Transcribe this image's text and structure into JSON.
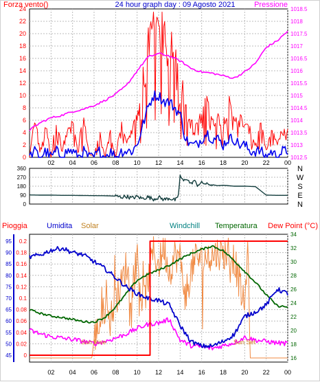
{
  "title": "24 hour graph day : 09 Agosto 2021",
  "chart_data": [
    {
      "id": "wind",
      "type": "line",
      "legend_left": "Forza vento()",
      "legend_right": "Pressione",
      "x_ticks": [
        "02",
        "04",
        "06",
        "08",
        "10",
        "12",
        "14",
        "16",
        "18",
        "20",
        "22",
        "00"
      ],
      "y_left_ticks": [
        "0",
        "2",
        "4",
        "6",
        "8",
        "10",
        "12",
        "14",
        "16",
        "18",
        "20",
        "22",
        "24"
      ],
      "y_left_range": [
        0,
        24
      ],
      "y_right_ticks": [
        "1012.5",
        "1013",
        "1013.5",
        "1014",
        "1014.5",
        "1015",
        "1015.5",
        "1016",
        "1016.5",
        "1017",
        "1017.5",
        "1018",
        "1018.5"
      ],
      "y_right_range": [
        1012.5,
        1018.5
      ],
      "colors": {
        "gust": "#ff0000",
        "speed": "#0000ee",
        "pressure": "#ff00ff"
      },
      "series": [
        {
          "name": "gust",
          "x": [
            0.0,
            0.5,
            1.0,
            1.5,
            2.0,
            2.5,
            3.0,
            3.5,
            4.0,
            4.5,
            5.0,
            5.5,
            6.0,
            6.5,
            7.0,
            7.5,
            8.0,
            8.5,
            9.0,
            9.5,
            10.0,
            10.5,
            11.0,
            11.5,
            12.0,
            12.5,
            13.0,
            13.5,
            14.0,
            14.5,
            15.0,
            15.5,
            16.0,
            16.5,
            17.0,
            17.5,
            18.0,
            18.5,
            19.0,
            19.5,
            20.0,
            20.5,
            21.0,
            21.5,
            22.0,
            22.5,
            23.0,
            23.5,
            24.0
          ],
          "values": [
            0,
            6,
            1,
            5,
            0,
            6,
            1,
            4,
            5,
            1,
            6,
            1,
            0,
            4,
            0,
            4,
            0,
            5,
            2,
            4,
            6,
            9,
            16,
            19,
            20,
            18,
            17,
            16,
            13,
            7,
            5,
            5,
            6,
            10,
            5,
            6,
            5,
            8,
            6,
            6,
            5,
            4,
            2,
            5,
            1,
            4,
            2,
            4,
            5
          ]
        },
        {
          "name": "speed",
          "x": [
            0.0,
            0.5,
            1.0,
            1.5,
            2.0,
            2.5,
            3.0,
            3.5,
            4.0,
            4.5,
            5.0,
            5.5,
            6.0,
            6.5,
            7.0,
            7.5,
            8.0,
            8.5,
            9.0,
            9.5,
            10.0,
            10.5,
            11.0,
            11.5,
            12.0,
            12.5,
            13.0,
            13.5,
            14.0,
            14.5,
            15.0,
            15.5,
            16.0,
            16.5,
            17.0,
            17.5,
            18.0,
            18.5,
            19.0,
            19.5,
            20.0,
            20.5,
            21.0,
            21.5,
            22.0,
            22.5,
            23.0,
            23.5,
            24.0
          ],
          "values": [
            0,
            1,
            0,
            1,
            0,
            1,
            0,
            1,
            1,
            0,
            1,
            0,
            0,
            1,
            0,
            1,
            0,
            1,
            1,
            1,
            2,
            5,
            8,
            10,
            10,
            9,
            9,
            8,
            7,
            3,
            2,
            2,
            3,
            4,
            3,
            3,
            2,
            3,
            3,
            2,
            2,
            1,
            1,
            1,
            0,
            1,
            0,
            1,
            1
          ]
        },
        {
          "name": "pressure",
          "x": [
            0,
            1,
            2,
            3,
            4,
            5,
            6,
            7,
            8,
            9,
            10,
            11,
            12,
            13,
            14,
            15,
            16,
            17,
            18,
            19,
            20,
            21,
            22,
            23,
            24
          ],
          "values": [
            1013.6,
            1013.9,
            1014.1,
            1014.2,
            1014.35,
            1014.45,
            1014.6,
            1014.8,
            1015.05,
            1015.4,
            1016.0,
            1016.55,
            1016.7,
            1016.6,
            1016.4,
            1016.1,
            1015.95,
            1015.9,
            1015.8,
            1015.7,
            1015.95,
            1016.3,
            1016.95,
            1017.2,
            1017.6
          ]
        }
      ]
    },
    {
      "id": "wind_direction",
      "type": "line",
      "x_ticks": [
        "02",
        "04",
        "06",
        "08",
        "10",
        "12",
        "14",
        "16",
        "18",
        "20",
        "22",
        "00"
      ],
      "y_left_ticks": [
        "0",
        "90",
        "180",
        "270",
        "360"
      ],
      "y_left_range": [
        0,
        360
      ],
      "y_right_ticks": [
        "N",
        "W",
        "S",
        "E",
        "N"
      ],
      "colors": {
        "direction": "#123c3c"
      },
      "series": [
        {
          "name": "direction",
          "x": [
            0.0,
            1.0,
            2.0,
            3.0,
            4.0,
            5.0,
            6.0,
            7.0,
            8.0,
            8.5,
            9.0,
            9.5,
            10.0,
            10.5,
            11.0,
            11.5,
            12.0,
            12.5,
            13.0,
            13.5,
            13.8,
            14.0,
            14.3,
            14.6,
            15.0,
            15.3,
            15.6,
            16.0,
            16.5,
            17.0,
            17.5,
            18.0,
            19.0,
            20.0,
            21.0,
            22.0,
            23.0,
            24.0
          ],
          "values": [
            92,
            90,
            90,
            88,
            88,
            86,
            85,
            84,
            80,
            70,
            78,
            60,
            75,
            55,
            72,
            50,
            68,
            45,
            60,
            40,
            55,
            285,
            230,
            260,
            200,
            240,
            190,
            215,
            200,
            195,
            185,
            190,
            180,
            180,
            176,
            90,
            88,
            88
          ]
        }
      ]
    },
    {
      "id": "weather",
      "type": "line",
      "legend_labels": [
        "Pioggia",
        "Umidita",
        "Solar",
        "Windchill",
        "Temperatura",
        "Dew Point (°C)"
      ],
      "annotations": [
        "Sun Rise",
        "Sun Set"
      ],
      "x_ticks": [
        "02",
        "04",
        "06",
        "08",
        "10",
        "12",
        "14",
        "16",
        "18",
        "20",
        "22",
        "00"
      ],
      "rain_ticks": [
        "0",
        "0.02",
        "0.04",
        "0.06",
        "0.08",
        "0.1",
        "0.12",
        "0.14",
        "0.16",
        "0.18",
        "0.2"
      ],
      "rain_range": [
        0,
        0.2
      ],
      "humidity_ticks": [
        "45",
        "50",
        "55",
        "60",
        "65",
        "70",
        "75",
        "80",
        "85",
        "90",
        "95"
      ],
      "humidity_range": [
        45,
        95
      ],
      "temp_ticks": [
        "16",
        "18",
        "20",
        "22",
        "24",
        "26",
        "28",
        "30",
        "32",
        "34"
      ],
      "temp_range": [
        16,
        34
      ],
      "colors": {
        "rain": "#ff0000",
        "humidity": "#0000cc",
        "solar": "#f08840",
        "windchill": "#008080",
        "temperature": "#006600",
        "dewpoint": "#ff00ff"
      },
      "series": [
        {
          "name": "rain",
          "x": [
            0,
            11.2,
            11.2,
            24
          ],
          "values": [
            0,
            0,
            0.2,
            0.2
          ]
        },
        {
          "name": "humidity",
          "x": [
            0,
            1,
            2,
            3,
            4,
            5,
            6,
            7,
            8,
            9,
            10,
            11,
            12,
            13,
            14,
            15,
            16,
            17,
            18,
            19,
            20,
            21,
            22,
            23,
            24
          ],
          "values": [
            88,
            89,
            91,
            92,
            90,
            89,
            86,
            83,
            79,
            75,
            72,
            70,
            69,
            67,
            58,
            51,
            49,
            49,
            51,
            54,
            62,
            64,
            67,
            74,
            72
          ]
        },
        {
          "name": "temperature",
          "x": [
            0,
            1,
            2,
            3,
            4,
            5,
            6,
            7,
            8,
            9,
            10,
            11,
            12,
            13,
            14,
            15,
            16,
            17,
            18,
            19,
            20,
            21,
            22,
            23,
            24
          ],
          "values": [
            23.0,
            22.5,
            22.1,
            21.9,
            21.6,
            21.3,
            21.2,
            21.9,
            23.4,
            25.4,
            27.3,
            28.2,
            28.8,
            29.5,
            30.4,
            31.2,
            31.8,
            32.3,
            31.6,
            30.2,
            28.6,
            27.0,
            25.2,
            23.6,
            23.4
          ]
        },
        {
          "name": "dewpoint",
          "x": [
            0,
            1,
            2,
            3,
            4,
            5,
            6,
            7,
            8,
            9,
            10,
            11,
            12,
            13,
            14,
            15,
            16,
            17,
            18,
            19,
            20,
            21,
            22,
            23,
            24
          ],
          "values": [
            20.0,
            19.5,
            19.1,
            18.9,
            18.7,
            18.4,
            18.1,
            18.4,
            18.9,
            19.5,
            20.3,
            20.9,
            21.1,
            21.6,
            18.6,
            17.8,
            17.6,
            17.4,
            17.8,
            18.2,
            19.0,
            18.6,
            18.4,
            18.2,
            18.1
          ]
        },
        {
          "name": "solar",
          "x": [
            0,
            5.8,
            6.0,
            6.5,
            7.0,
            7.5,
            8.0,
            8.5,
            9.0,
            9.5,
            10.0,
            10.5,
            11.0,
            11.5,
            12.0,
            12.5,
            13.0,
            13.5,
            14.0,
            14.5,
            15.0,
            15.5,
            16.0,
            16.5,
            17.0,
            17.5,
            18.0,
            18.5,
            19.0,
            19.5,
            20.0,
            20.3,
            20.5,
            24
          ],
          "values": [
            16.0,
            16.0,
            18.8,
            21.0,
            23.2,
            21.5,
            24.5,
            26.5,
            29.6,
            25.0,
            31.0,
            23.5,
            27.0,
            31.5,
            29.5,
            32.2,
            28.5,
            31.0,
            30.5,
            25.0,
            28.5,
            31.0,
            30.0,
            30.8,
            30.8,
            31.4,
            31.0,
            31.6,
            30.5,
            27.0,
            23.0,
            33.6,
            16.0,
            16.0
          ]
        }
      ]
    }
  ]
}
